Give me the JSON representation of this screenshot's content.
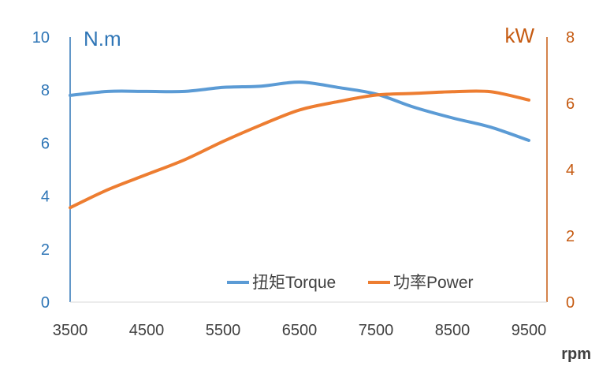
{
  "chart_data": {
    "type": "line",
    "xlabel": "rpm",
    "x_ticks": [
      "3500",
      "4500",
      "5500",
      "6500",
      "7500",
      "8500",
      "9500"
    ],
    "xlim": [
      3500,
      9500
    ],
    "y_left": {
      "unit": "N.m",
      "ylim": [
        0,
        10
      ],
      "ticks": [
        "0",
        "2",
        "4",
        "6",
        "8",
        "10"
      ],
      "color": "#2e75b6"
    },
    "y_right": {
      "unit": "kW",
      "ylim": [
        0,
        8
      ],
      "ticks": [
        "0",
        "2",
        "4",
        "6",
        "8"
      ],
      "color": "#c55a11"
    },
    "legend_position": "bottom-right",
    "grid": false,
    "series": [
      {
        "name": "扭矩Torque",
        "axis": "left",
        "color": "#5b9bd5",
        "x": [
          3500,
          4000,
          4500,
          5000,
          5500,
          6000,
          6500,
          7000,
          7500,
          8000,
          8500,
          9000,
          9500
        ],
        "y": [
          7.8,
          7.95,
          7.95,
          7.95,
          8.1,
          8.15,
          8.3,
          8.1,
          7.85,
          7.35,
          6.95,
          6.6,
          6.1
        ]
      },
      {
        "name": "功率Power",
        "axis": "right",
        "color": "#ed7d31",
        "x": [
          3500,
          4000,
          4500,
          5000,
          5500,
          6000,
          6500,
          7000,
          7500,
          8000,
          8500,
          9000,
          9500
        ],
        "y": [
          2.85,
          3.4,
          3.85,
          4.3,
          4.85,
          5.35,
          5.8,
          6.05,
          6.25,
          6.3,
          6.35,
          6.35,
          6.1
        ]
      }
    ]
  }
}
